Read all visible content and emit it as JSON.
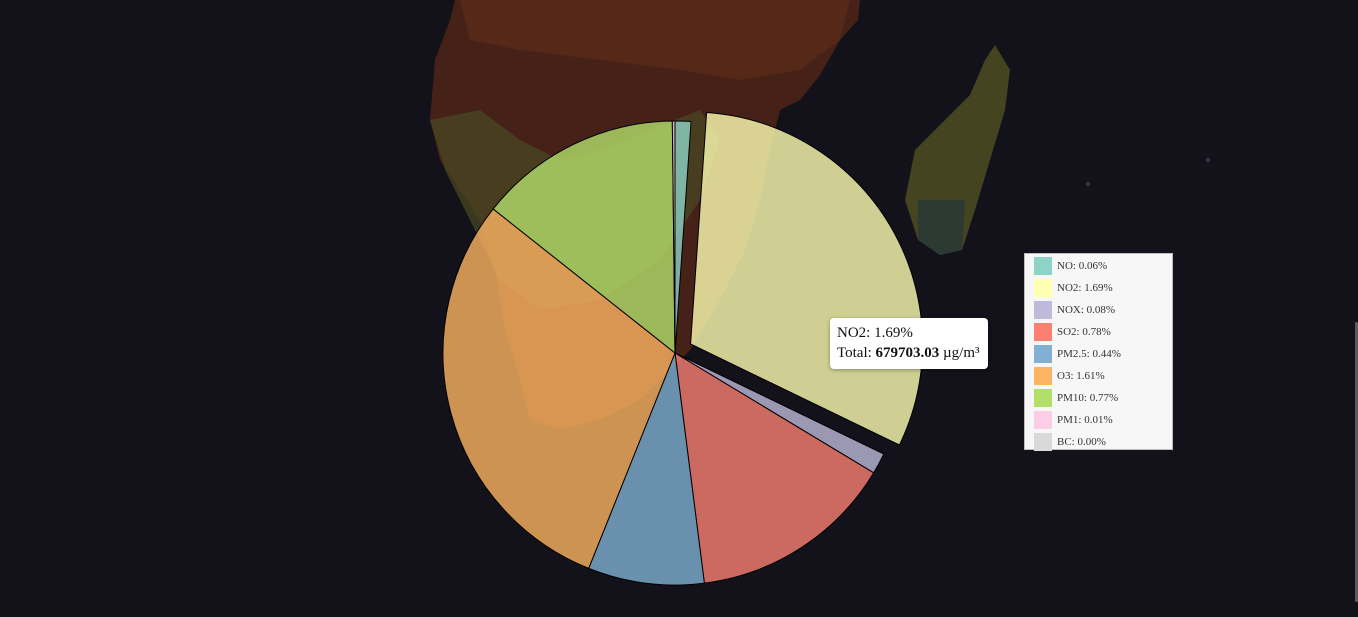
{
  "chart_data": {
    "type": "pie",
    "title": "",
    "slices": [
      {
        "label": "NO",
        "value": 0.06,
        "color": "#8dd3c7"
      },
      {
        "label": "NO2",
        "value": 1.69,
        "color": "#ffffb3"
      },
      {
        "label": "NOX",
        "value": 0.08,
        "color": "#bebada"
      },
      {
        "label": "SO2",
        "value": 0.78,
        "color": "#fb8072"
      },
      {
        "label": "PM2.5",
        "value": 0.44,
        "color": "#80b1d3"
      },
      {
        "label": "O3",
        "value": 1.61,
        "color": "#fdb462"
      },
      {
        "label": "PM10",
        "value": 0.77,
        "color": "#b3de69"
      },
      {
        "label": "PM1",
        "value": 0.01,
        "color": "#fccde5"
      },
      {
        "label": "BC",
        "value": 0.0,
        "color": "#d9d9d9"
      }
    ],
    "highlighted": "NO2",
    "unit": "%",
    "legend_position": "right"
  },
  "legend": {
    "items": [
      {
        "text": "NO: 0.06%",
        "color": "#8dd3c7"
      },
      {
        "text": "NO2: 1.69%",
        "color": "#ffffb3"
      },
      {
        "text": "NOX: 0.08%",
        "color": "#bebada"
      },
      {
        "text": "SO2: 0.78%",
        "color": "#fb8072"
      },
      {
        "text": "PM2.5: 0.44%",
        "color": "#80b1d3"
      },
      {
        "text": "O3: 1.61%",
        "color": "#fdb462"
      },
      {
        "text": "PM10: 0.77%",
        "color": "#b3de69"
      },
      {
        "text": "PM1: 0.01%",
        "color": "#fccde5"
      },
      {
        "text": "BC: 0.00%",
        "color": "#d9d9d9"
      }
    ]
  },
  "tooltip": {
    "line1": "NO2: 1.69%",
    "total_prefix": "Total: ",
    "total_value": "679703.03",
    "total_unit": " µg/m³"
  },
  "map": {
    "background_color": "#13121a",
    "land_color": "#4a2a1a"
  }
}
